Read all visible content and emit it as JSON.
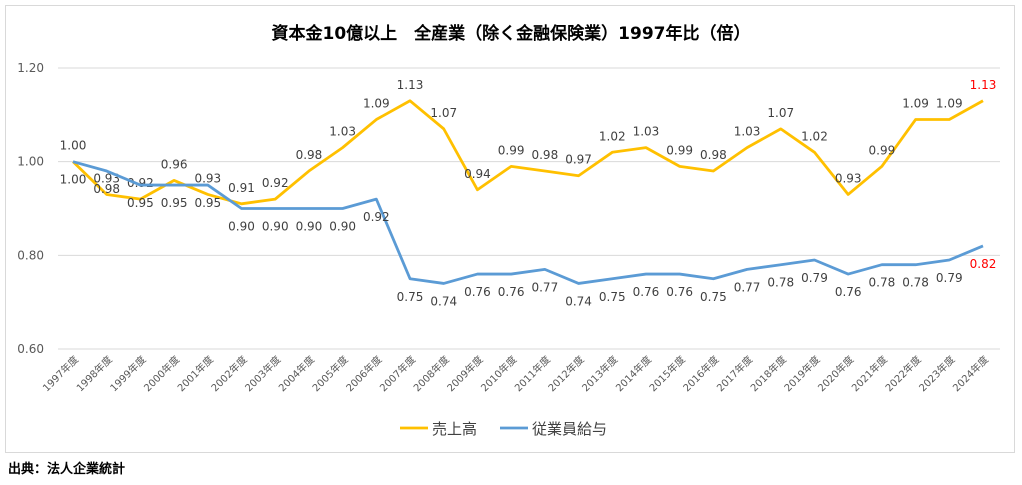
{
  "chart_data": {
    "type": "line",
    "title": "資本金10億以上　全産業（除く金融保険業）1997年比（倍）",
    "categories": [
      "1997年度",
      "1998年度",
      "1999年度",
      "2000年度",
      "2001年度",
      "2002年度",
      "2003年度",
      "2004年度",
      "2005年度",
      "2006年度",
      "2007年度",
      "2008年度",
      "2009年度",
      "2010年度",
      "2011年度",
      "2012年度",
      "2013年度",
      "2014年度",
      "2015年度",
      "2016年度",
      "2017年度",
      "2018年度",
      "2019年度",
      "2020年度",
      "2021年度",
      "2022年度",
      "2023年度",
      "2024年度"
    ],
    "series": [
      {
        "name": "売上高",
        "color": "#ffc000",
        "label_pos": "above",
        "values": [
          1.0,
          0.93,
          0.92,
          0.96,
          0.93,
          0.91,
          0.92,
          0.98,
          1.03,
          1.09,
          1.13,
          1.07,
          0.94,
          0.99,
          0.98,
          0.97,
          1.02,
          1.03,
          0.99,
          0.98,
          1.03,
          1.07,
          1.02,
          0.93,
          0.99,
          1.09,
          1.09,
          1.13
        ]
      },
      {
        "name": "従業員給与",
        "color": "#5b9bd5",
        "label_pos": "below",
        "values": [
          1.0,
          0.98,
          0.95,
          0.95,
          0.95,
          0.9,
          0.9,
          0.9,
          0.9,
          0.92,
          0.75,
          0.74,
          0.76,
          0.76,
          0.77,
          0.74,
          0.75,
          0.76,
          0.76,
          0.75,
          0.77,
          0.78,
          0.79,
          0.76,
          0.78,
          0.78,
          0.79,
          0.82
        ]
      }
    ],
    "yticks": [
      "0.60",
      "0.80",
      "1.00",
      "1.20"
    ],
    "ylim": [
      0.6,
      1.2
    ],
    "grid": true,
    "legend": "bottom",
    "last_label_color": "#ff0000"
  },
  "source": "出典：法人企業統計"
}
